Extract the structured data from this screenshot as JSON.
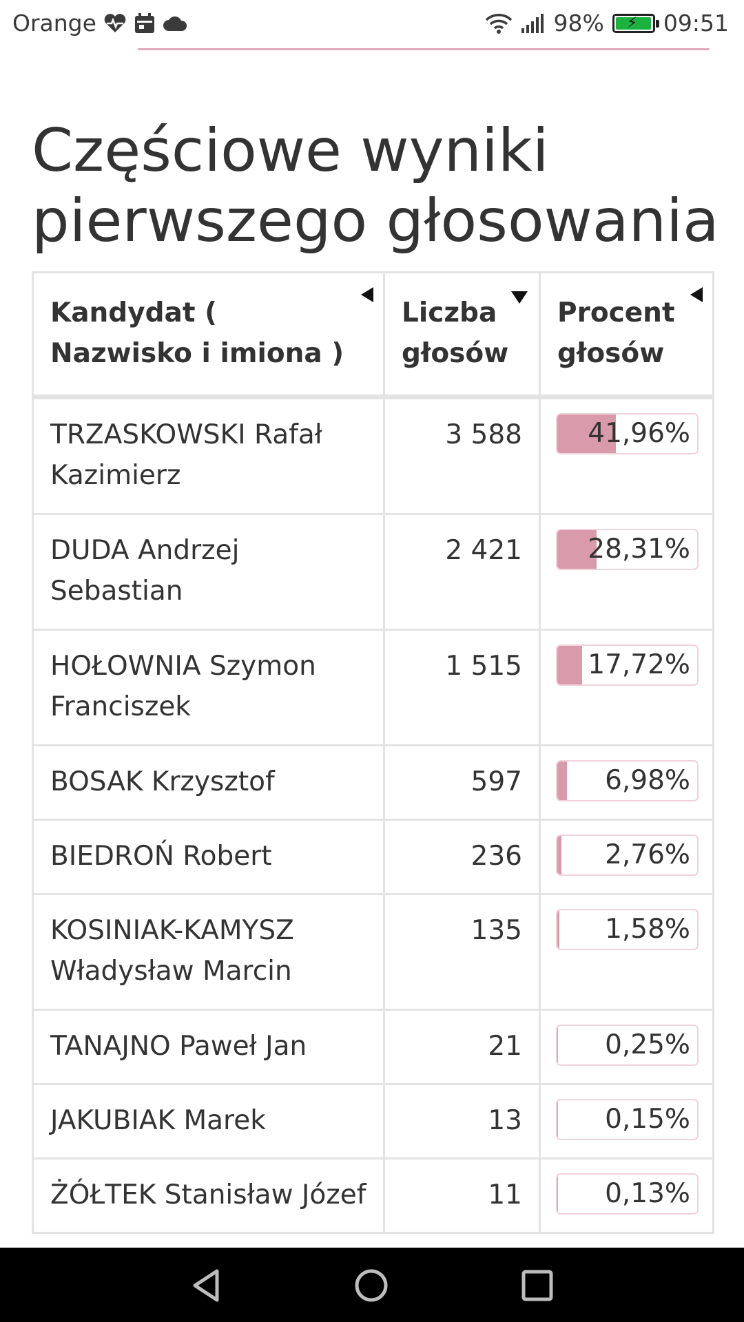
{
  "status_bar": {
    "carrier": "Orange",
    "battery_percent": "98%",
    "battery_level": 0.98,
    "time": "09:51",
    "icons": [
      "heart-rate-icon",
      "calendar-icon",
      "cloud-icon",
      "wifi-icon",
      "signal-icon",
      "battery-charging-icon"
    ]
  },
  "page": {
    "heading": "Częściowe wyniki pierwszego głosowania"
  },
  "table": {
    "headers": {
      "candidate": "Kandydat ( Nazwisko i imiona )",
      "votes": "Liczba głosów",
      "percent": "Procent głosów"
    },
    "rows": [
      {
        "name": "TRZASKOWSKI Rafał Kazimierz",
        "votes": "3 588",
        "percent": "41,96%",
        "share": 41.96
      },
      {
        "name": "DUDA Andrzej Sebastian",
        "votes": "2 421",
        "percent": "28,31%",
        "share": 28.31
      },
      {
        "name": "HOŁOWNIA Szymon Franciszek",
        "votes": "1 515",
        "percent": "17,72%",
        "share": 17.72
      },
      {
        "name": "BOSAK Krzysztof",
        "votes": "597",
        "percent": "6,98%",
        "share": 6.98
      },
      {
        "name": "BIEDROŃ Robert",
        "votes": "236",
        "percent": "2,76%",
        "share": 2.76
      },
      {
        "name": "KOSINIAK-KAMYSZ Władysław Marcin",
        "votes": "135",
        "percent": "1,58%",
        "share": 1.58
      },
      {
        "name": "TANAJNO Paweł Jan",
        "votes": "21",
        "percent": "0,25%",
        "share": 0.25
      },
      {
        "name": "JAKUBIAK Marek",
        "votes": "13",
        "percent": "0,15%",
        "share": 0.15
      },
      {
        "name": "ŻÓŁTEK Stanisław Józef",
        "votes": "11",
        "percent": "0,13%",
        "share": 0.13
      }
    ]
  },
  "colors": {
    "bar_fill": "#d99aab",
    "accent_line": "#e3a9bc"
  },
  "nav_bar": {
    "icons": [
      "back-icon",
      "home-icon",
      "recents-icon"
    ]
  }
}
